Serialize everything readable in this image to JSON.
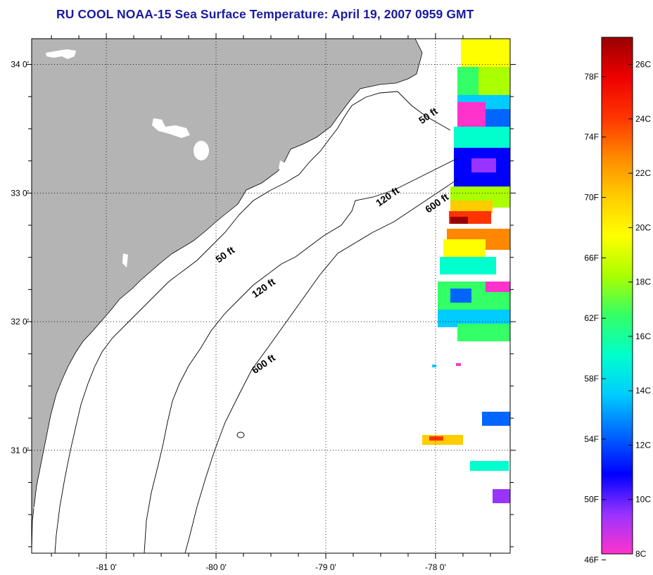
{
  "title": "RU COOL  NOAA-15  Sea Surface Temperature:  April 19, 2007 0959 GMT",
  "map": {
    "lon_range": [
      -81.68,
      -77.32
    ],
    "lat_range": [
      30.2,
      34.2
    ],
    "lon_ticks": [
      {
        "value": -81,
        "label": "-81 0'"
      },
      {
        "value": -80,
        "label": "-80 0'"
      },
      {
        "value": -79,
        "label": "-79 0'"
      },
      {
        "value": -78,
        "label": "-78 0'"
      }
    ],
    "lat_ticks": [
      {
        "value": 34,
        "label": "34 0'"
      },
      {
        "value": 33,
        "label": "33 0'"
      },
      {
        "value": 32,
        "label": "32 0'"
      },
      {
        "value": 31,
        "label": "31 0'"
      }
    ],
    "grid": "dotted",
    "land_color": "#b4b4b4",
    "contours": [
      {
        "depth": "50 ft",
        "labels": [
          {
            "text": "50 ft",
            "lon": -78.05,
            "lat": 33.58
          },
          {
            "text": "50 ft",
            "lon": -79.9,
            "lat": 32.5
          }
        ]
      },
      {
        "depth": "120 ft",
        "labels": [
          {
            "text": "120 ft",
            "lon": -78.42,
            "lat": 32.95
          },
          {
            "text": "120 ft",
            "lon": -79.55,
            "lat": 32.24
          }
        ]
      },
      {
        "depth": "600 ft",
        "labels": [
          {
            "text": "600 ft",
            "lon": -77.97,
            "lat": 32.9
          },
          {
            "text": "600 ft",
            "lon": -79.55,
            "lat": 31.65
          }
        ]
      }
    ]
  },
  "colorbar": {
    "f_labels": [
      {
        "value": 78,
        "label": "78F"
      },
      {
        "value": 74,
        "label": "74F"
      },
      {
        "value": 70,
        "label": "70F"
      },
      {
        "value": 66,
        "label": "66F"
      },
      {
        "value": 62,
        "label": "62F"
      },
      {
        "value": 58,
        "label": "58F"
      },
      {
        "value": 54,
        "label": "54F"
      },
      {
        "value": 50,
        "label": "50F"
      },
      {
        "value": 46,
        "label": "46F"
      }
    ],
    "c_labels": [
      {
        "value": 26,
        "label": "26C"
      },
      {
        "value": 24,
        "label": "24C"
      },
      {
        "value": 22,
        "label": "22C"
      },
      {
        "value": 20,
        "label": "20C"
      },
      {
        "value": 18,
        "label": "18C"
      },
      {
        "value": 16,
        "label": "16C"
      },
      {
        "value": 14,
        "label": "14C"
      },
      {
        "value": 12,
        "label": "12C"
      },
      {
        "value": 10,
        "label": "10C"
      },
      {
        "value": 8,
        "label": "8C"
      }
    ],
    "c_range": [
      8,
      27
    ],
    "colors": [
      "#ff33cc",
      "#9933ff",
      "#0000ff",
      "#0066ff",
      "#00ccff",
      "#00ffcc",
      "#33ff66",
      "#aaff00",
      "#ffff00",
      "#ffcc00",
      "#ff8800",
      "#ff3300",
      "#ee0000",
      "#990000"
    ]
  }
}
